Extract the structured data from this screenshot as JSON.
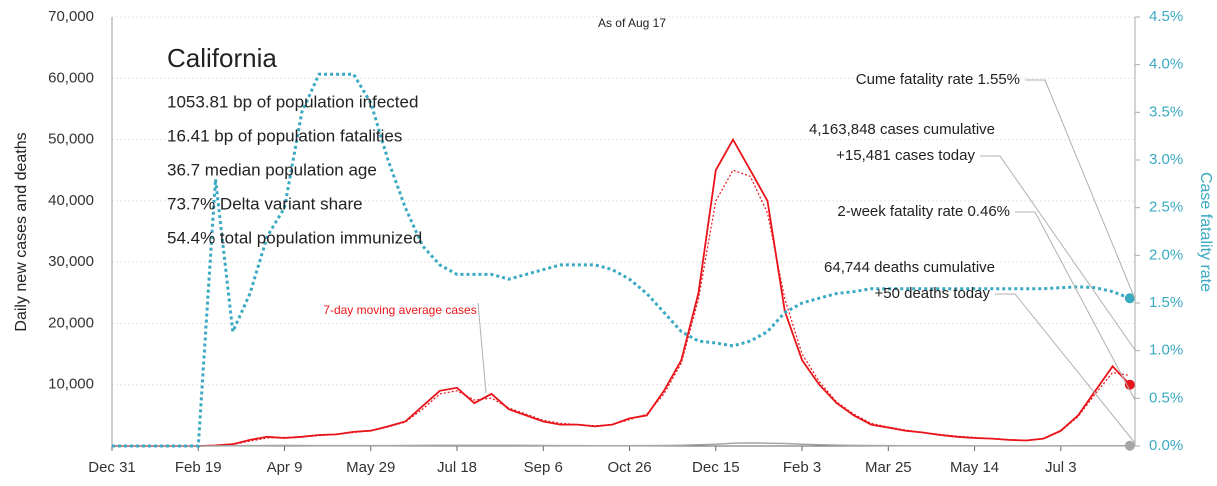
{
  "chart_data": {
    "type": "line",
    "title": "California",
    "subtitle": "As of Aug 17",
    "stats": [
      "1053.81 bp of population infected",
      "16.41 bp of population fatalities",
      "36.7 median population age",
      "73.7% Delta variant share",
      "54.4% total population immunized"
    ],
    "annotations": [
      "Cume fatality rate 1.55%",
      "4,163,848 cases cumulative",
      "+15,481 cases today",
      "2-week fatality rate 0.46%",
      "64,744 deaths cumulative",
      "+50 deaths today",
      "7-day moving average cases"
    ],
    "y_label": "Daily new cases and deaths",
    "y2_label": "Case fatality rate",
    "categories": [
      "Dec 31",
      null,
      null,
      null,
      null,
      "Feb 19",
      null,
      null,
      null,
      null,
      "Apr 9",
      null,
      null,
      null,
      null,
      "May 29",
      null,
      null,
      null,
      null,
      "Jul 18",
      null,
      null,
      null,
      null,
      "Sep 6",
      null,
      null,
      null,
      null,
      "Oct 26",
      null,
      null,
      null,
      null,
      "Dec 15",
      null,
      null,
      null,
      null,
      "Feb 3",
      null,
      null,
      null,
      null,
      "Mar 25",
      null,
      null,
      null,
      null,
      "May 14",
      null,
      null,
      null,
      null,
      "Jul 3",
      null,
      null,
      null,
      null
    ],
    "series": [
      {
        "name": "Daily new cases",
        "color": "#e8141a",
        "values": [
          0,
          0,
          0,
          0,
          0,
          0,
          100,
          300,
          1000,
          1500,
          1300,
          1500,
          1800,
          1900,
          2300,
          2500,
          3200,
          4000,
          6500,
          9000,
          9500,
          7000,
          8500,
          6000,
          5000,
          4000,
          3500,
          3500,
          3200,
          3500,
          4500,
          5000,
          9000,
          14000,
          25000,
          45000,
          50000,
          45000,
          40000,
          22000,
          14000,
          10000,
          7000,
          5000,
          3500,
          3000,
          2500,
          2200,
          1800,
          1500,
          1300,
          1200,
          1000,
          900,
          1200,
          2500,
          5000,
          9000,
          13000,
          10000
        ]
      },
      {
        "name": "7-day moving average cases",
        "color": "#e8141a",
        "values": [
          0,
          0,
          0,
          0,
          0,
          0,
          80,
          250,
          800,
          1300,
          1400,
          1500,
          1700,
          1900,
          2200,
          2500,
          3100,
          3900,
          6000,
          8500,
          9000,
          7500,
          7800,
          6200,
          5200,
          4200,
          3700,
          3500,
          3300,
          3500,
          4300,
          5200,
          8500,
          13500,
          24000,
          40000,
          45000,
          44000,
          38000,
          24000,
          15000,
          10500,
          7200,
          5200,
          3700,
          3100,
          2600,
          2200,
          1900,
          1600,
          1400,
          1200,
          1000,
          950,
          1200,
          2400,
          4800,
          8500,
          12000,
          11500
        ]
      },
      {
        "name": "Daily new deaths",
        "color": "#a6a6a6",
        "values": [
          0,
          0,
          0,
          0,
          0,
          0,
          5,
          30,
          60,
          80,
          90,
          80,
          70,
          70,
          60,
          60,
          70,
          80,
          100,
          120,
          130,
          130,
          120,
          110,
          90,
          80,
          70,
          60,
          50,
          50,
          50,
          60,
          80,
          120,
          200,
          300,
          450,
          500,
          450,
          400,
          300,
          200,
          150,
          100,
          80,
          60,
          40,
          30,
          30,
          25,
          20,
          20,
          20,
          20,
          20,
          20,
          25,
          30,
          40,
          50
        ]
      },
      {
        "name": "Case fatality rate",
        "color": "#3aa9c2",
        "axis": "y2",
        "values": [
          0,
          0,
          0,
          0,
          0,
          0,
          2.8,
          1.2,
          1.6,
          2.2,
          2.5,
          3.5,
          3.9,
          3.9,
          3.9,
          3.6,
          3.0,
          2.5,
          2.1,
          1.9,
          1.8,
          1.8,
          1.8,
          1.75,
          1.8,
          1.85,
          1.9,
          1.9,
          1.9,
          1.85,
          1.75,
          1.6,
          1.4,
          1.2,
          1.1,
          1.08,
          1.05,
          1.1,
          1.2,
          1.4,
          1.5,
          1.55,
          1.6,
          1.62,
          1.65,
          1.65,
          1.65,
          1.65,
          1.65,
          1.65,
          1.65,
          1.65,
          1.65,
          1.65,
          1.65,
          1.66,
          1.67,
          1.66,
          1.62,
          1.55
        ]
      }
    ],
    "ylim": [
      0,
      70000
    ],
    "yticks": [
      {
        "value": 10000,
        "label": "10,000"
      },
      {
        "value": 20000,
        "label": "20,000"
      },
      {
        "value": 30000,
        "label": "30,000"
      },
      {
        "value": 40000,
        "label": "40,000"
      },
      {
        "value": 50000,
        "label": "50,000"
      },
      {
        "value": 60000,
        "label": "60,000"
      },
      {
        "value": 70000,
        "label": "70,000"
      }
    ],
    "y2lim": [
      0,
      4.5
    ],
    "y2ticks": [
      {
        "value": 0,
        "label": "0.0%"
      },
      {
        "value": 0.5,
        "label": "0.5%"
      },
      {
        "value": 1,
        "label": "1.0%"
      },
      {
        "value": 1.5,
        "label": "1.5%"
      },
      {
        "value": 2,
        "label": "2.0%"
      },
      {
        "value": 2.5,
        "label": "2.5%"
      },
      {
        "value": 3,
        "label": "3.0%"
      },
      {
        "value": 3.5,
        "label": "3.5%"
      },
      {
        "value": 4,
        "label": "4.0%"
      },
      {
        "value": 4.5,
        "label": "4.5%"
      }
    ],
    "grid": true
  }
}
